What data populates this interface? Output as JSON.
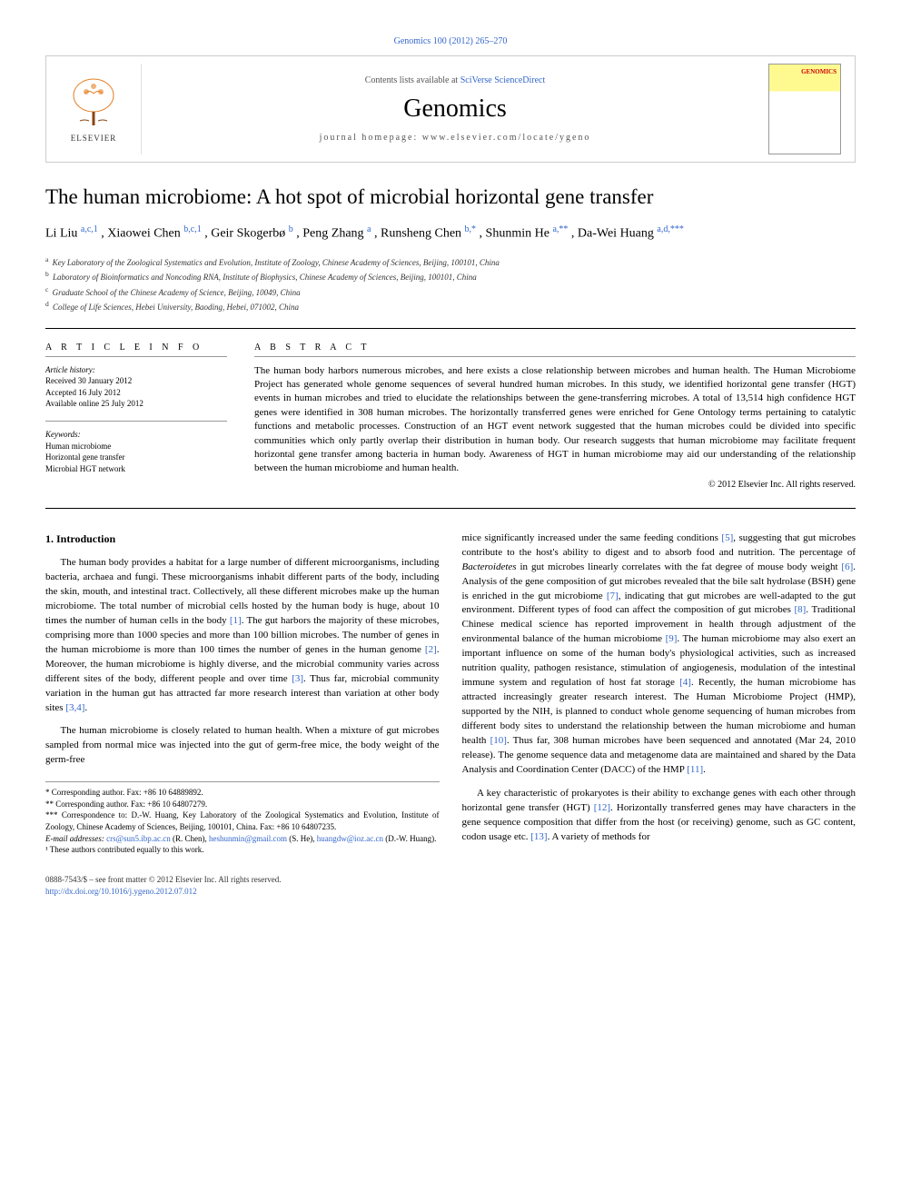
{
  "header": {
    "citation": "Genomics 100 (2012) 265–270",
    "contents_prefix": "Contents lists available at ",
    "contents_link": "SciVerse ScienceDirect",
    "journal_name": "Genomics",
    "homepage_prefix": "journal homepage: ",
    "homepage_url": "www.elsevier.com/locate/ygeno",
    "elsevier_label": "ELSEVIER",
    "cover_label": "GENOMICS"
  },
  "article": {
    "title": "The human microbiome: A hot spot of microbial horizontal gene transfer",
    "authors_html_parts": {
      "a1": "Li Liu ",
      "a1_sup": "a,c,1",
      "a2": ", Xiaowei Chen ",
      "a2_sup": "b,c,1",
      "a3": ", Geir Skogerbø ",
      "a3_sup": "b",
      "a4": ", Peng Zhang ",
      "a4_sup": "a",
      "a5": ", Runsheng Chen ",
      "a5_sup": "b,*",
      "a6": ", Shunmin He ",
      "a6_sup": "a,**",
      "a7": ", Da-Wei Huang ",
      "a7_sup": "a,d,***"
    }
  },
  "affiliations": {
    "a": "Key Laboratory of the Zoological Systematics and Evolution, Institute of Zoology, Chinese Academy of Sciences, Beijing, 100101, China",
    "b": "Laboratory of Bioinformatics and Noncoding RNA, Institute of Biophysics, Chinese Academy of Sciences, Beijing, 100101, China",
    "c": "Graduate School of the Chinese Academy of Science, Beijing, 10049, China",
    "d": "College of Life Sciences, Hebei University, Baoding, Hebei, 071002, China"
  },
  "article_info": {
    "heading": "A R T I C L E   I N F O",
    "history_label": "Article history:",
    "received": "Received 30 January 2012",
    "accepted": "Accepted 16 July 2012",
    "available": "Available online 25 July 2012",
    "keywords_label": "Keywords:",
    "kw1": "Human microbiome",
    "kw2": "Horizontal gene transfer",
    "kw3": "Microbial HGT network"
  },
  "abstract": {
    "heading": "A B S T R A C T",
    "text": "The human body harbors numerous microbes, and here exists a close relationship between microbes and human health. The Human Microbiome Project has generated whole genome sequences of several hundred human microbes. In this study, we identified horizontal gene transfer (HGT) events in human microbes and tried to elucidate the relationships between the gene-transferring microbes. A total of 13,514 high confidence HGT genes were identified in 308 human microbes. The horizontally transferred genes were enriched for Gene Ontology terms pertaining to catalytic functions and metabolic processes. Construction of an HGT event network suggested that the human microbes could be divided into specific communities which only partly overlap their distribution in human body. Our research suggests that human microbiome may facilitate frequent horizontal gene transfer among bacteria in human body. Awareness of HGT in human microbiome may aid our understanding of the relationship between the human microbiome and human health.",
    "copyright": "© 2012 Elsevier Inc. All rights reserved."
  },
  "body": {
    "intro_heading": "1. Introduction",
    "p1": "The human body provides a habitat for a large number of different microorganisms, including bacteria, archaea and fungi. These microorganisms inhabit different parts of the body, including the skin, mouth, and intestinal tract. Collectively, all these different microbes make up the human microbiome. The total number of microbial cells hosted by the human body is huge, about 10 times the number of human cells in the body [1]. The gut harbors the majority of these microbes, comprising more than 1000 species and more than 100 billion microbes. The number of genes in the human microbiome is more than 100 times the number of genes in the human genome [2]. Moreover, the human microbiome is highly diverse, and the microbial community varies across different sites of the body, different people and over time [3]. Thus far, microbial community variation in the human gut has attracted far more research interest than variation at other body sites [3,4].",
    "p2": "The human microbiome is closely related to human health. When a mixture of gut microbes sampled from normal mice was injected into the gut of germ-free mice, the body weight of the germ-free",
    "p3": "mice significantly increased under the same feeding conditions [5], suggesting that gut microbes contribute to the host's ability to digest and to absorb food and nutrition. The percentage of Bacteroidetes in gut microbes linearly correlates with the fat degree of mouse body weight [6]. Analysis of the gene composition of gut microbes revealed that the bile salt hydrolase (BSH) gene is enriched in the gut microbiome [7], indicating that gut microbes are well-adapted to the gut environment. Different types of food can affect the composition of gut microbes [8]. Traditional Chinese medical science has reported improvement in health through adjustment of the environmental balance of the human microbiome [9]. The human microbiome may also exert an important influence on some of the human body's physiological activities, such as increased nutrition quality, pathogen resistance, stimulation of angiogenesis, modulation of the intestinal immune system and regulation of host fat storage [4]. Recently, the human microbiome has attracted increasingly greater research interest. The Human Microbiome Project (HMP), supported by the NIH, is planned to conduct whole genome sequencing of human microbes from different body sites to understand the relationship between the human microbiome and human health [10]. Thus far, 308 human microbes have been sequenced and annotated (Mar 24, 2010 release). The genome sequence data and metagenome data are maintained and shared by the Data Analysis and Coordination Center (DACC) of the HMP [11].",
    "p4": "A key characteristic of prokaryotes is their ability to exchange genes with each other through horizontal gene transfer (HGT) [12]. Horizontally transferred genes may have characters in the gene sequence composition that differ from the host (or receiving) genome, such as GC content, codon usage etc. [13]. A variety of methods for"
  },
  "footnotes": {
    "f1": "* Corresponding author. Fax: +86 10 64889892.",
    "f2": "** Corresponding author. Fax: +86 10 64807279.",
    "f3": "*** Correspondence to: D.-W. Huang, Key Laboratory of the Zoological Systematics and Evolution, Institute of Zoology, Chinese Academy of Sciences, Beijing, 100101, China. Fax: +86 10 64807235.",
    "email_label": "E-mail addresses: ",
    "email1": "crs@sun5.ibp.ac.cn",
    "email1_name": " (R. Chen), ",
    "email2": "heshunmin@gmail.com",
    "email2_name": " (S. He), ",
    "email3": "huangdw@ioz.ac.cn",
    "email3_name": " (D.-W. Huang).",
    "f4": "¹ These authors contributed equally to this work."
  },
  "footer": {
    "issn": "0888-7543/$ – see front matter © 2012 Elsevier Inc. All rights reserved.",
    "doi": "http://dx.doi.org/10.1016/j.ygeno.2012.07.012"
  },
  "colors": {
    "link": "#3366cc",
    "text": "#000000",
    "border": "#cccccc",
    "cover_yellow": "#fffa90",
    "cover_red": "#cc0000"
  }
}
